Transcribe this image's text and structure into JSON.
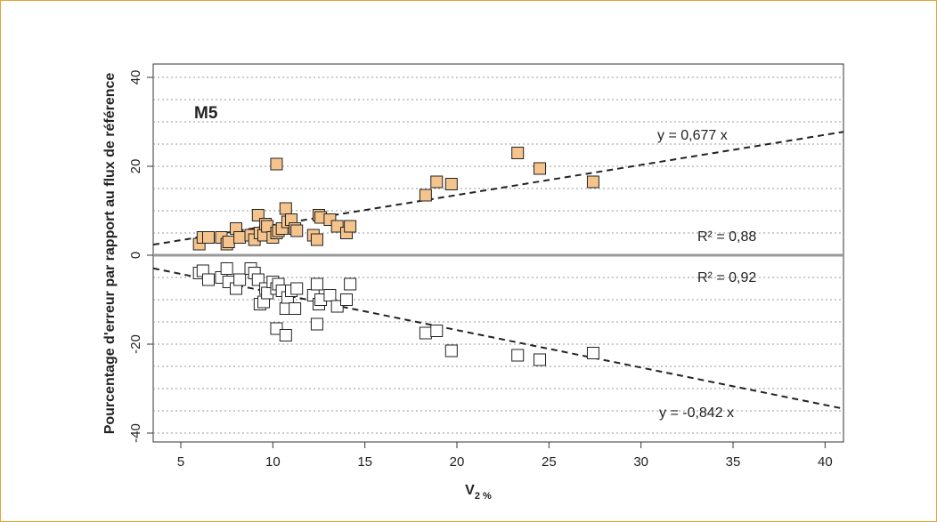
{
  "chart_data": {
    "type": "scatter",
    "title": "",
    "panel_label": "M5",
    "xlabel": "V",
    "xlabel_subscript": "2 %",
    "ylabel": "Pourcentage d'erreur par rapport au flux de référence",
    "xlim": [
      3.5,
      41
    ],
    "ylim": [
      -42,
      43
    ],
    "xticks": [
      5,
      10,
      15,
      20,
      25,
      30,
      35,
      40
    ],
    "yticks": [
      -40,
      -20,
      0,
      20,
      40
    ],
    "grid": "horizontal dotted every 5",
    "series": [
      {
        "marker": "square-filled",
        "color": "#f5c48d",
        "x": [
          6,
          6.2,
          6.5,
          7.2,
          7.5,
          7.6,
          8,
          8.2,
          8.8,
          9,
          9.2,
          9.3,
          9.5,
          9.6,
          9.7,
          10,
          10.2,
          10.3,
          10.5,
          10.7,
          10.8,
          11,
          11.2,
          11.3,
          12.2,
          12.4,
          12.5,
          12.6,
          13.1,
          13.5,
          14,
          14.2,
          10.2,
          18.3,
          18.9,
          19.7,
          23.3,
          24.5,
          27.4
        ],
        "y": [
          2.5,
          4,
          4,
          4,
          2.5,
          3,
          6,
          4,
          4.5,
          3.5,
          9,
          5,
          4.5,
          7,
          6.5,
          4,
          5,
          5.5,
          6,
          10.5,
          7.5,
          8,
          6,
          5.5,
          4.5,
          3.5,
          9,
          8.5,
          8,
          6.5,
          5,
          6.5,
          20.5,
          13.5,
          16.5,
          16,
          23,
          19.5,
          16.5
        ]
      },
      {
        "marker": "square-open",
        "color": "#ffffff",
        "x": [
          6,
          6.2,
          6.5,
          7.2,
          7.5,
          7.6,
          8,
          8.2,
          8.8,
          9,
          9.2,
          9.3,
          9.5,
          9.6,
          9.7,
          10,
          10.2,
          10.3,
          10.5,
          10.7,
          10.8,
          11,
          11.2,
          11.3,
          12.2,
          12.4,
          12.5,
          12.6,
          13.1,
          13.5,
          14,
          14.2,
          10.2,
          10.7,
          12.4,
          18.3,
          18.9,
          19.7,
          23.3,
          24.5,
          27.4
        ],
        "y": [
          -4,
          -3.5,
          -5.5,
          -5,
          -3,
          -6,
          -7.5,
          -5.5,
          -3,
          -4,
          -5.5,
          -11,
          -10.5,
          -7.5,
          -8.5,
          -6,
          -7.5,
          -6.5,
          -8,
          -12,
          -9.5,
          -8,
          -12,
          -7.5,
          -9,
          -6.5,
          -11,
          -10,
          -9,
          -11.5,
          -10,
          -6.5,
          -16.5,
          -18,
          -15.5,
          -17.5,
          -17,
          -21.5,
          -22.5,
          -23.5,
          -22
        ]
      }
    ],
    "fits": [
      {
        "label": "y = 0,677  x",
        "slope": 0.677,
        "r2_label": "R² = 0,88"
      },
      {
        "label": "y = -0,842  x",
        "slope": -0.842,
        "r2_label": "R² = 0,92"
      }
    ],
    "zero_line": 0
  }
}
